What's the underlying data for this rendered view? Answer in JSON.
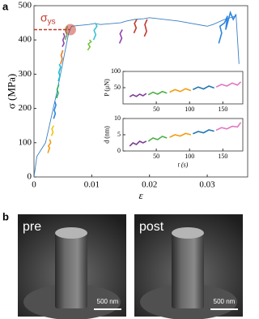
{
  "panel_labels": [
    "a",
    "b"
  ],
  "chart_data": [
    {
      "type": "line",
      "xlabel": "ε",
      "ylabel": "σ (MPa)",
      "xlim": [
        0,
        0.037
      ],
      "xticks": [
        0,
        0.01,
        0.02,
        0.03
      ],
      "ylim": [
        0,
        500
      ],
      "yticks": [
        0,
        100,
        200,
        300,
        400,
        500
      ],
      "yield_point": {
        "x": 0.0063,
        "y": 430,
        "label": "σ",
        "label_sub": "ys",
        "color": "#c0392b"
      },
      "series": [
        {
          "color": "#3a7fc1",
          "x": [
            0,
            0.0005,
            0.002,
            0.004,
            0.006,
            0.0065,
            0.0095,
            0.0105,
            0.0115,
            0.015,
            0.016,
            0.0175,
            0.019,
            0.02,
            0.025,
            0.03,
            0.031,
            0.033,
            0.035,
            0.0355
          ],
          "values": [
            0,
            60,
            100,
            250,
            420,
            440,
            445,
            448,
            445,
            450,
            455,
            460,
            462,
            465,
            455,
            440,
            445,
            460,
            470,
            330
          ]
        },
        {
          "color": "#f39c12",
          "x": [
            0.0024,
            0.0027,
            0.0025,
            0.0029,
            0.0027
          ],
          "values": [
            70,
            85,
            90,
            100,
            110
          ]
        },
        {
          "color": "#f1c40f",
          "x": [
            0.003,
            0.0033,
            0.0031,
            0.0034
          ],
          "values": [
            120,
            130,
            140,
            150
          ]
        },
        {
          "color": "#2e86de",
          "x": [
            0.0034,
            0.0037,
            0.0035,
            0.0038,
            0.0036
          ],
          "values": [
            170,
            185,
            195,
            210,
            220
          ]
        },
        {
          "color": "#27ae60",
          "x": [
            0.0039,
            0.0042,
            0.004,
            0.0043
          ],
          "values": [
            230,
            245,
            255,
            270
          ]
        },
        {
          "color": "#17becf",
          "x": [
            0.0042,
            0.0045,
            0.0043,
            0.0046,
            0.0044
          ],
          "values": [
            280,
            295,
            305,
            320,
            330
          ]
        },
        {
          "color": "#e67e22",
          "x": [
            0.0046,
            0.0049,
            0.0047,
            0.005
          ],
          "values": [
            330,
            345,
            355,
            370
          ]
        },
        {
          "color": "#8e44ad",
          "x": [
            0.0049,
            0.0052,
            0.005,
            0.0053,
            0.0051
          ],
          "values": [
            380,
            390,
            400,
            410,
            420
          ]
        },
        {
          "color": "#6ab04c",
          "x": [
            0.0054,
            0.0057,
            0.0055,
            0.0058
          ],
          "values": [
            400,
            415,
            425,
            440
          ]
        },
        {
          "color": "#7bc043",
          "x": [
            0.0093,
            0.0097,
            0.0094,
            0.0099,
            0.0096
          ],
          "values": [
            370,
            380,
            388,
            395,
            400
          ]
        },
        {
          "color": "#3ec1d3",
          "x": [
            0.0103,
            0.0107,
            0.0104,
            0.0109,
            0.0106
          ],
          "values": [
            400,
            415,
            428,
            440,
            450
          ]
        },
        {
          "color": "#8e44ad",
          "x": [
            0.0148,
            0.0152,
            0.0149,
            0.0153
          ],
          "values": [
            390,
            405,
            418,
            430
          ]
        },
        {
          "color": "#c0392b",
          "x": [
            0.0173,
            0.0177,
            0.0174,
            0.0178
          ],
          "values": [
            420,
            435,
            448,
            460
          ]
        },
        {
          "color": "#c0392b",
          "x": [
            0.0191,
            0.0195,
            0.0192,
            0.0196
          ],
          "values": [
            410,
            425,
            445,
            460
          ]
        },
        {
          "color": "#2e86de",
          "x": [
            0.032,
            0.0325,
            0.0322,
            0.033,
            0.0335,
            0.0332,
            0.034,
            0.0345,
            0.035
          ],
          "values": [
            390,
            420,
            440,
            450,
            470,
            430,
            480,
            460,
            475
          ]
        }
      ]
    },
    {
      "type": "line",
      "ylabel": "P (μN)",
      "xlim": [
        0,
        180
      ],
      "xticks": [
        50,
        100,
        150
      ],
      "ylim": [
        0,
        100
      ],
      "yticks": [
        50,
        100
      ],
      "series": [
        {
          "color": "#7e3f98",
          "x": [
            10,
            15,
            20,
            25,
            30,
            35
          ],
          "values": [
            22,
            28,
            23,
            30,
            25,
            32
          ]
        },
        {
          "color": "#4daf4a",
          "x": [
            38,
            45,
            52,
            59,
            66
          ],
          "values": [
            28,
            36,
            30,
            38,
            33
          ]
        },
        {
          "color": "#f39c12",
          "x": [
            70,
            78,
            86,
            94,
            102
          ],
          "values": [
            36,
            44,
            38,
            47,
            41
          ]
        },
        {
          "color": "#1f77b4",
          "x": [
            105,
            113,
            121,
            129,
            137
          ],
          "values": [
            44,
            52,
            46,
            55,
            49
          ]
        },
        {
          "color": "#e377c2",
          "x": [
            140,
            148,
            156,
            164,
            172,
            177
          ],
          "values": [
            52,
            60,
            55,
            64,
            58,
            68
          ]
        }
      ]
    },
    {
      "type": "line",
      "xlabel": "t (s)",
      "ylabel": "d (nm)",
      "xlim": [
        0,
        180
      ],
      "xticks": [
        50,
        100,
        150
      ],
      "ylim": [
        0,
        10
      ],
      "yticks": [
        0,
        5,
        10
      ],
      "series": [
        {
          "color": "#7e3f98",
          "x": [
            10,
            15,
            20,
            25,
            30,
            35
          ],
          "values": [
            1.5,
            2.5,
            2,
            3,
            2.5,
            3
          ]
        },
        {
          "color": "#4daf4a",
          "x": [
            38,
            45,
            52,
            59,
            66
          ],
          "values": [
            3,
            4,
            3.5,
            4.5,
            4
          ]
        },
        {
          "color": "#f39c12",
          "x": [
            70,
            78,
            86,
            94,
            102
          ],
          "values": [
            4.2,
            5,
            4.6,
            5.4,
            5
          ]
        },
        {
          "color": "#1f77b4",
          "x": [
            105,
            113,
            121,
            129,
            137
          ],
          "values": [
            5.3,
            6,
            5.6,
            6.5,
            6.1
          ]
        },
        {
          "color": "#e377c2",
          "x": [
            140,
            148,
            156,
            164,
            172,
            177
          ],
          "values": [
            6.4,
            7.2,
            6.8,
            7.6,
            7.4,
            8.8
          ]
        }
      ]
    }
  ],
  "images": [
    {
      "label": "pre",
      "scale_bar": "500 nm"
    },
    {
      "label": "post",
      "scale_bar": "500 nm"
    }
  ]
}
